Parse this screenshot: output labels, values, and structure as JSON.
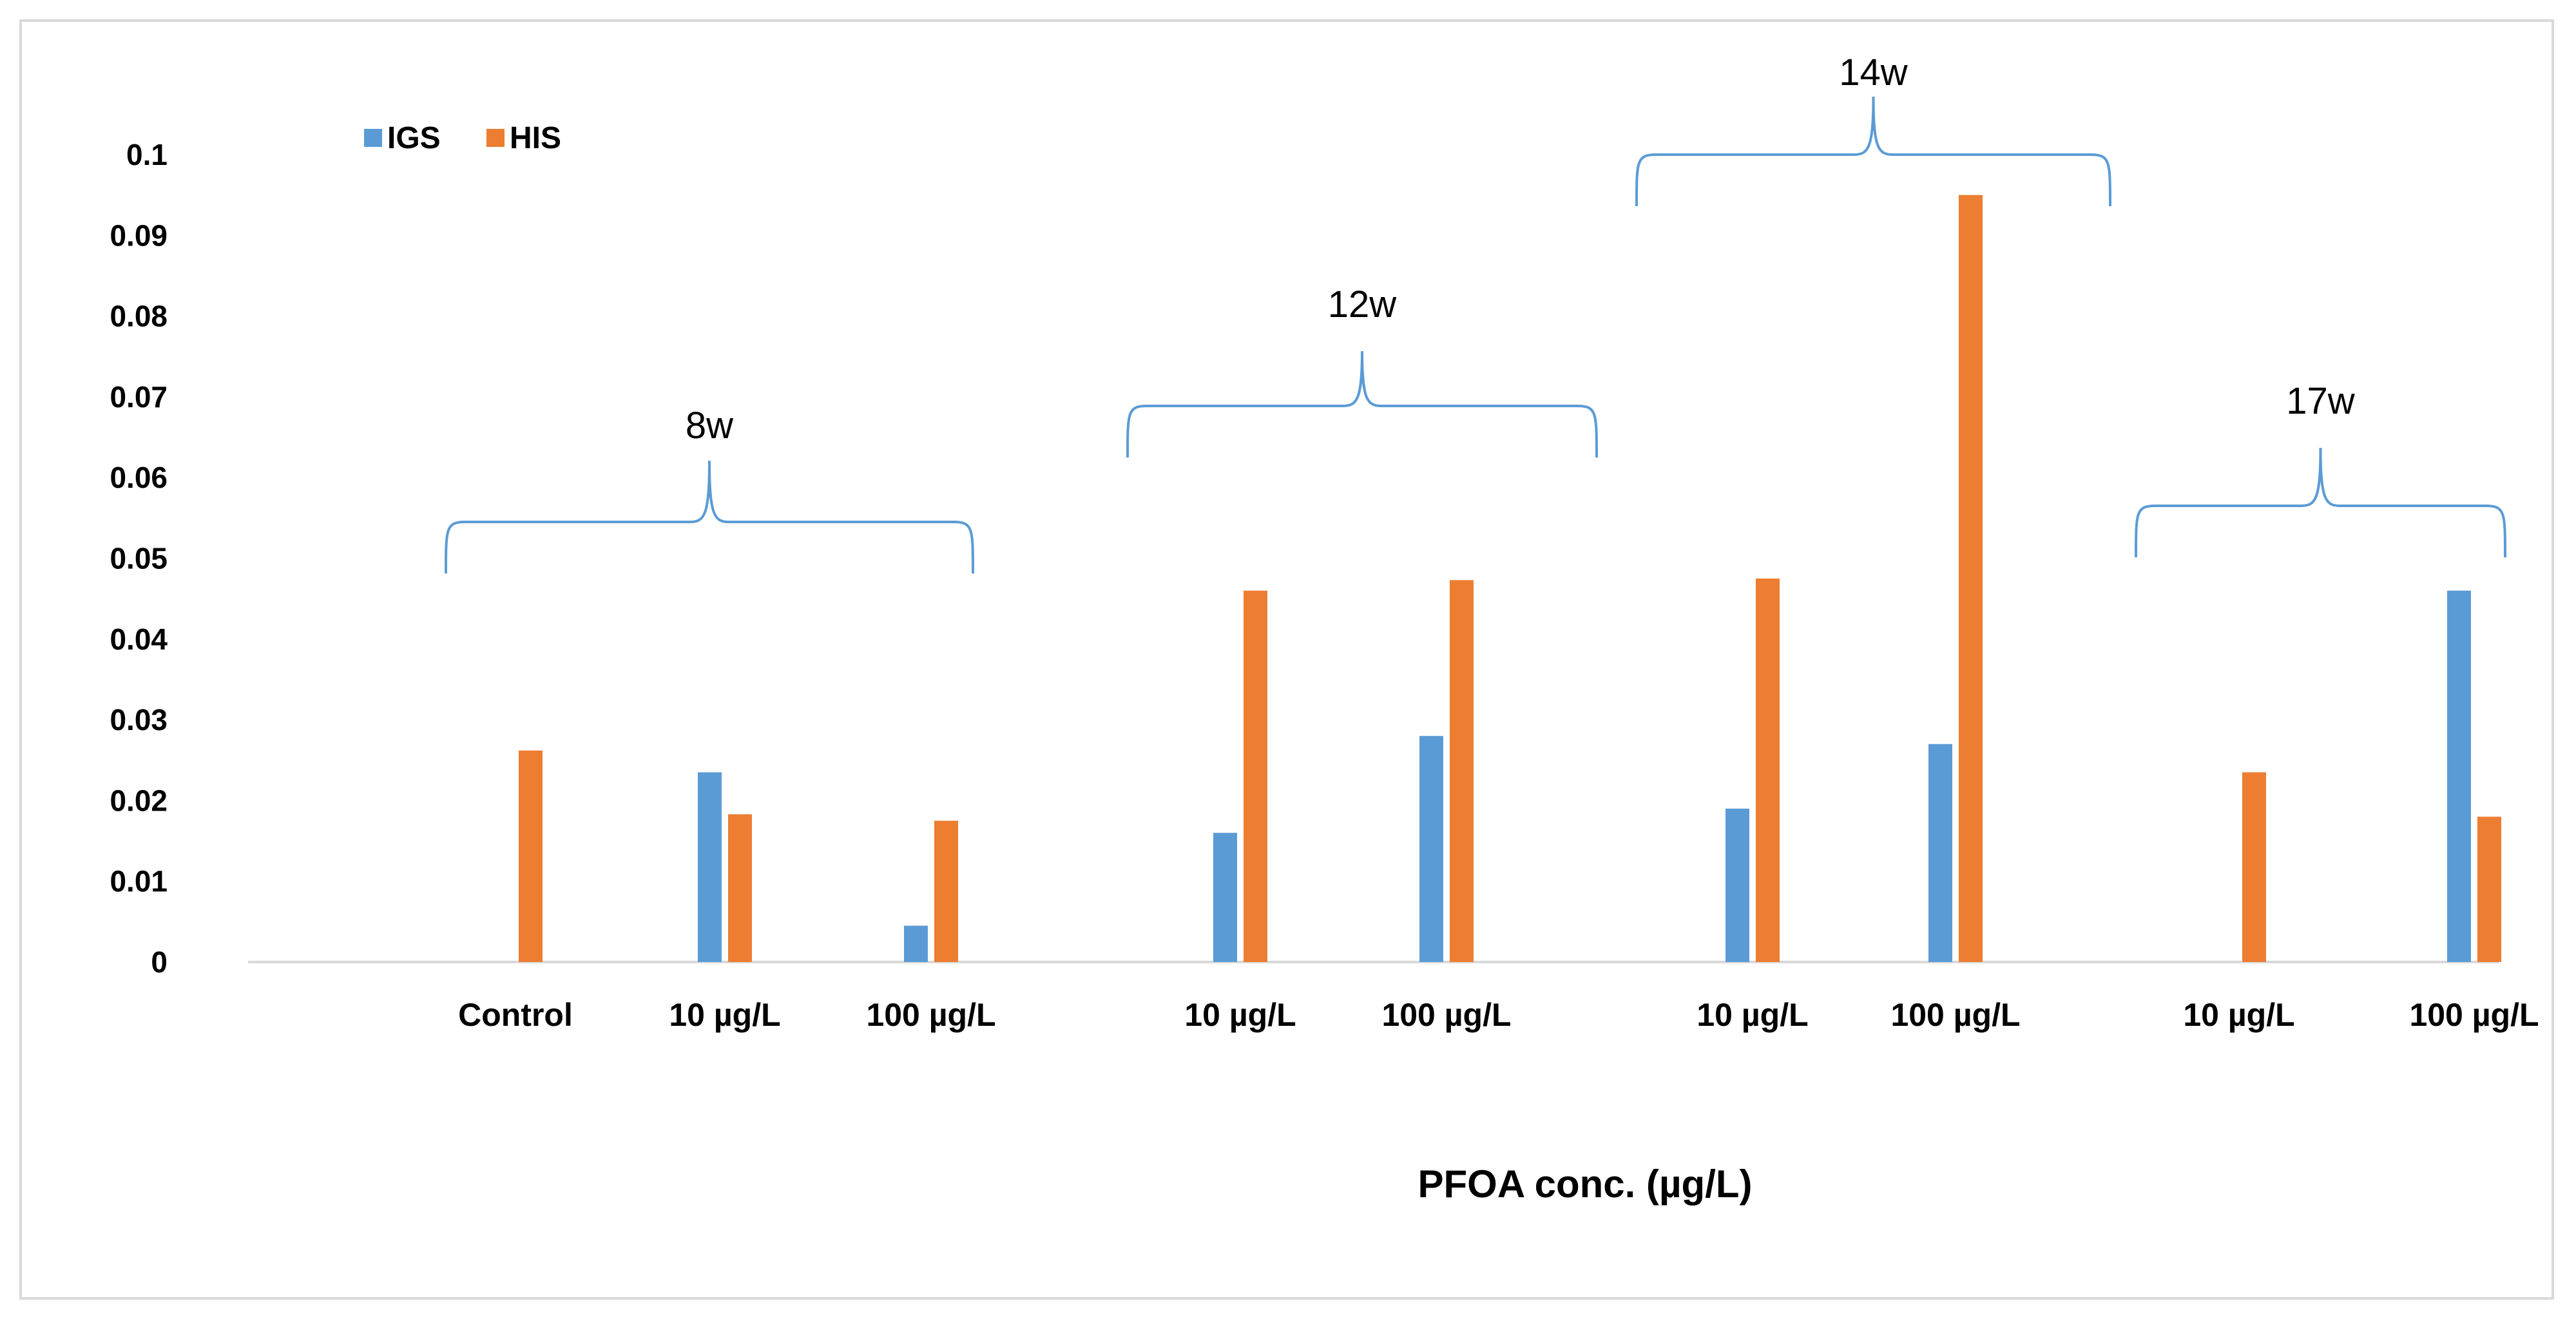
{
  "chart_data": {
    "type": "bar",
    "title": "",
    "xlabel": "PFOA  conc. (µg/L)",
    "ylabel": "",
    "ylim": [
      0,
      0.1
    ],
    "ytick_labels": [
      "0",
      "0.01",
      "0.02",
      "0.03",
      "0.04",
      "0.05",
      "0.06",
      "0.07",
      "0.08",
      "0.09",
      "0.1"
    ],
    "grid": false,
    "legend_position": "top-left",
    "categories": [
      "Control",
      "10 µg/L",
      "100 µg/L",
      "10 µg/L",
      "100 µg/L",
      "10 µg/L",
      "100 µg/L",
      "10 µg/L",
      "100 µg/L"
    ],
    "series": [
      {
        "name": "IGS",
        "color": "#5b9bd5",
        "values": [
          0,
          0.0235,
          0.0045,
          0.016,
          0.028,
          0.019,
          0.027,
          0,
          0.046
        ]
      },
      {
        "name": "HIS",
        "color": "#ed7d31",
        "values": [
          0.0262,
          0.0183,
          0.0175,
          0.046,
          0.0473,
          0.0475,
          0.095,
          0.0235,
          0.018
        ]
      }
    ],
    "groups": [
      {
        "label": "8w",
        "first": 0,
        "last": 2
      },
      {
        "label": "12w",
        "first": 3,
        "last": 4
      },
      {
        "label": "14w",
        "first": 5,
        "last": 6
      },
      {
        "label": "17w",
        "first": 7,
        "last": 8
      }
    ]
  }
}
